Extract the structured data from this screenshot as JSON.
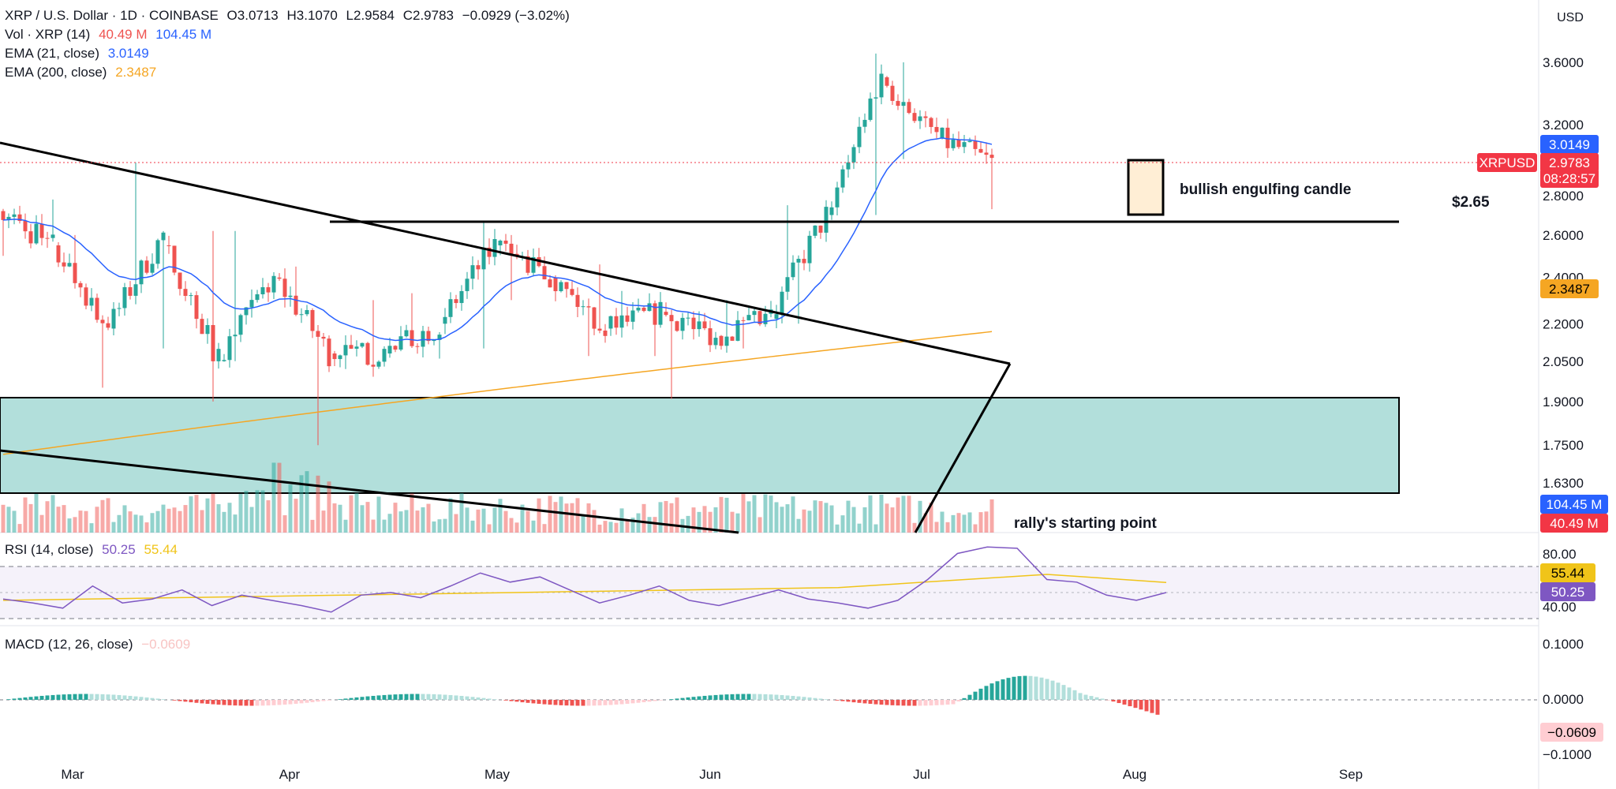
{
  "header": {
    "symbol": "XRP / U.S. Dollar · 1D · COINBASE",
    "open": "O3.0713",
    "high": "H3.1070",
    "low": "L2.9584",
    "close": "C2.9783",
    "change": "−0.0929 (−3.02%)",
    "vol_label": "Vol · XRP (14)",
    "vol_values": [
      "40.49 M",
      "104.45 M"
    ],
    "ema21_label": "EMA (21, close)",
    "ema21_value": "3.0149",
    "ema200_label": "EMA (200, close)",
    "ema200_value": "2.3487"
  },
  "currency_button": "USD",
  "rsi_label": "RSI (14, close)",
  "rsi_values": [
    "50.25",
    "55.44"
  ],
  "macd_label": "MACD (12, 26, close)",
  "macd_value": "−0.0609",
  "price_tags": {
    "ema21": "3.0149",
    "symbol": "XRPUSD",
    "last": "2.9783",
    "countdown": "08:28:57",
    "ema200": "2.3487",
    "vol_ma": "104.45 M",
    "vol": "40.49 M",
    "rsi_ma": "55.44",
    "rsi": "50.25",
    "macd": "−0.0609"
  },
  "annotations": {
    "engulfing": "bullish engulfing candle",
    "level": "$2.65",
    "rally": "rally's starting point"
  },
  "colors": {
    "up": "#26a69a",
    "down": "#ef5350",
    "ema21": "#2962ff",
    "ema200": "#f5a623",
    "rsi": "#7e57c2",
    "rsi_ma": "#f0c419",
    "zone_fill": "#b2dfdb",
    "last_price": "#f23645"
  },
  "chart_data": [
    {
      "type": "candlestick",
      "title": "XRP / U.S. Dollar · 1D · COINBASE",
      "x_axis_ticks": [
        "Mar",
        "Apr",
        "May",
        "Jun",
        "Jul",
        "Aug",
        "Sep"
      ],
      "y_axis_ticks": [
        "3.6000",
        "3.2000",
        "2.8000",
        "2.6000",
        "2.4000",
        "2.2000",
        "2.0500",
        "1.9000",
        "1.7500",
        "1.6300"
      ],
      "y_scale": "log",
      "ohlc_weekly": [
        {
          "period": "mid Feb",
          "open": 2.72,
          "high": 2.78,
          "low": 2.5,
          "close": 2.55
        },
        {
          "period": "late Feb",
          "open": 2.55,
          "high": 2.6,
          "low": 1.95,
          "close": 2.18
        },
        {
          "period": "early Mar",
          "open": 2.18,
          "high": 2.98,
          "low": 2.1,
          "close": 2.6
        },
        {
          "period": "mid Mar",
          "open": 2.55,
          "high": 2.62,
          "low": 1.9,
          "close": 2.05
        },
        {
          "period": "late Mar",
          "open": 2.05,
          "high": 2.62,
          "low": 2.05,
          "close": 2.4
        },
        {
          "period": "early Apr",
          "open": 2.4,
          "high": 2.45,
          "low": 1.75,
          "close": 2.08
        },
        {
          "period": "mid Apr",
          "open": 2.08,
          "high": 2.3,
          "low": 2.02,
          "close": 2.08
        },
        {
          "period": "late Apr",
          "open": 2.08,
          "high": 2.33,
          "low": 2.06,
          "close": 2.2
        },
        {
          "period": "early May",
          "open": 2.2,
          "high": 2.66,
          "low": 2.1,
          "close": 2.55
        },
        {
          "period": "mid May",
          "open": 2.55,
          "high": 2.6,
          "low": 2.3,
          "close": 2.4
        },
        {
          "period": "late May",
          "open": 2.4,
          "high": 2.46,
          "low": 2.07,
          "close": 2.18
        },
        {
          "period": "early Jun",
          "open": 2.18,
          "high": 2.34,
          "low": 2.07,
          "close": 2.25
        },
        {
          "period": "mid Jun",
          "open": 2.25,
          "high": 2.29,
          "low": 1.91,
          "close": 2.15
        },
        {
          "period": "late Jun",
          "open": 2.15,
          "high": 2.3,
          "low": 2.1,
          "close": 2.22
        },
        {
          "period": "early Jul",
          "open": 2.22,
          "high": 2.75,
          "low": 2.2,
          "close": 2.7
        },
        {
          "period": "mid Jul",
          "open": 2.7,
          "high": 3.66,
          "low": 2.7,
          "close": 3.5
        },
        {
          "period": "late Jul",
          "open": 3.5,
          "high": 3.6,
          "low": 3.0,
          "close": 3.12
        },
        {
          "period": "early Aug",
          "open": 3.12,
          "high": 3.13,
          "low": 2.73,
          "close": 2.98
        }
      ],
      "series": [
        {
          "name": "EMA (21, close)",
          "last": 3.0149
        },
        {
          "name": "EMA (200, close)",
          "last": 2.3487
        }
      ],
      "last_price": 2.9783,
      "horizontal_levels": [
        2.65
      ],
      "demand_zone": [
        1.61,
        1.92
      ]
    },
    {
      "type": "bar",
      "title": "Vol · XRP (14)",
      "series": [
        {
          "name": "Vol · XRP (14)",
          "last": "40.49 M"
        },
        {
          "name": "MA",
          "last": "104.45 M"
        }
      ]
    },
    {
      "type": "line",
      "title": "RSI (14, close)",
      "y_axis_ticks": [
        "80.00",
        "40.00"
      ],
      "bands": [
        30,
        50,
        70
      ],
      "series": [
        {
          "name": "RSI",
          "values": [
            45,
            42,
            38,
            55,
            42,
            45,
            52,
            40,
            48,
            44,
            40,
            35,
            48,
            50,
            46,
            55,
            65,
            58,
            62,
            52,
            42,
            48,
            55,
            44,
            40,
            46,
            52,
            45,
            42,
            38,
            44,
            60,
            80,
            85,
            84,
            60,
            58,
            48,
            44,
            50
          ],
          "last": 50.25
        },
        {
          "name": "MA",
          "last": 55.44
        }
      ]
    },
    {
      "type": "bar",
      "title": "MACD (12, 26, close)",
      "y_axis_ticks": [
        "0.1000",
        "0.0000",
        "−0.1000"
      ],
      "histogram_last": -0.0609
    }
  ]
}
